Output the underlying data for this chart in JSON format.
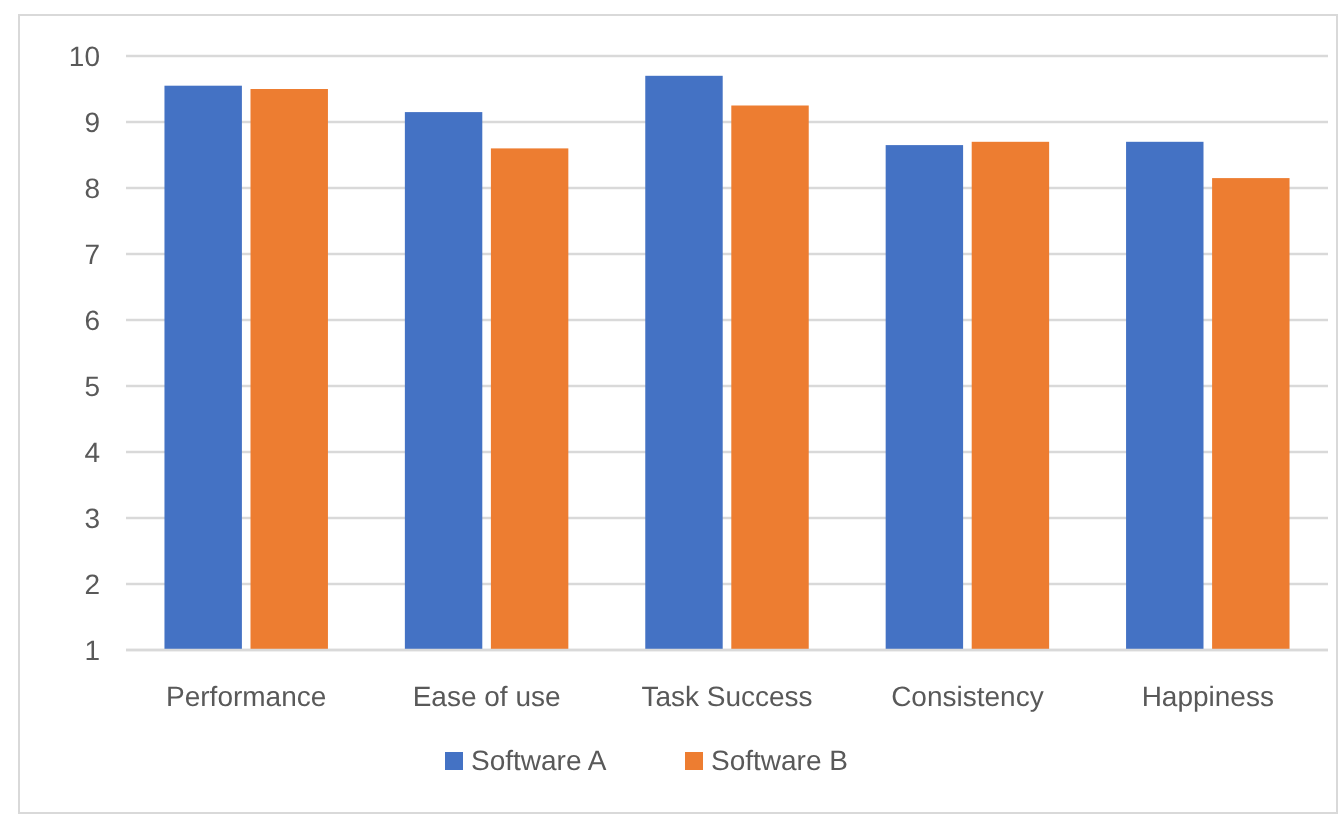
{
  "chart_data": {
    "type": "bar",
    "categories": [
      "Performance",
      "Ease of use",
      "Task Success",
      "Consistency",
      "Happiness"
    ],
    "series": [
      {
        "name": "Software A",
        "color": "#4472c4",
        "values": [
          9.55,
          9.15,
          9.7,
          8.65,
          8.7
        ]
      },
      {
        "name": "Software B",
        "color": "#ed7d31",
        "values": [
          9.5,
          8.6,
          9.25,
          8.7,
          8.15
        ]
      }
    ],
    "ylim": [
      1,
      10
    ],
    "yticks": [
      1,
      2,
      3,
      4,
      5,
      6,
      7,
      8,
      9,
      10
    ],
    "grid": "y",
    "legend": "bottom"
  }
}
